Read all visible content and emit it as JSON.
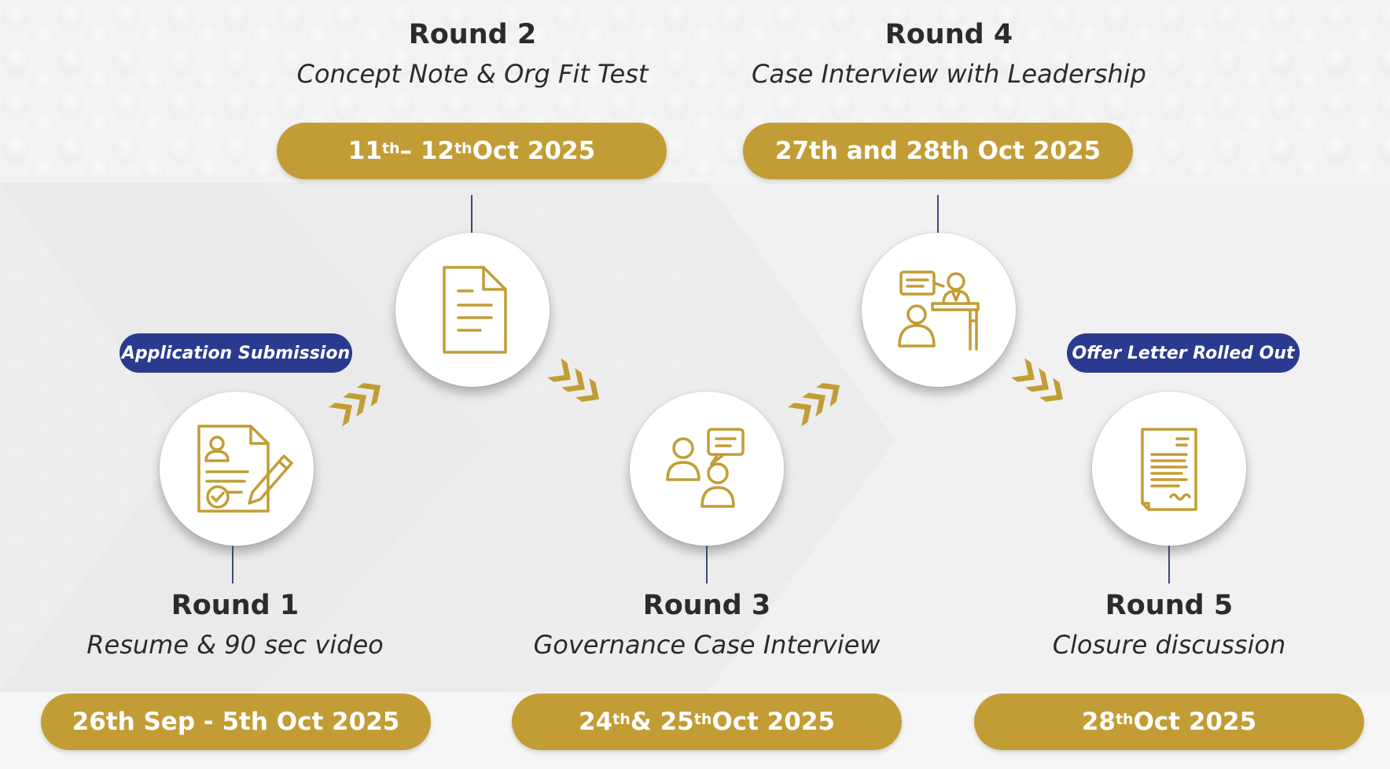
{
  "colors": {
    "gold": "#c29d35",
    "navy": "#2a3b8f",
    "text": "#2b2b2b"
  },
  "rounds": [
    {
      "title": "Round 1",
      "subtitle": "Resume & 90 sec video",
      "date": "26th Sep - 5th Oct 2025",
      "icon": "resume-pen-icon"
    },
    {
      "title": "Round 2",
      "subtitle": "Concept Note & Org Fit Test",
      "date": {
        "a": "11",
        "a_sup": "th",
        "b": "– 12",
        "b_sup": "th",
        "c": " Oct 2025"
      },
      "icon": "document-icon"
    },
    {
      "title": "Round 3",
      "subtitle": "Governance Case Interview",
      "date": {
        "a": "24",
        "a_sup": "th",
        "b": " & 25",
        "b_sup": "th",
        "c": " Oct 2025"
      },
      "icon": "discussion-icon"
    },
    {
      "title": "Round 4",
      "subtitle": "Case Interview with Leadership",
      "date": "27th and 28th Oct 2025",
      "icon": "interview-desk-icon"
    },
    {
      "title": "Round 5",
      "subtitle": "Closure discussion",
      "date": {
        "a": "28",
        "a_sup": "th",
        "c": " Oct 2025"
      },
      "icon": "signed-document-icon"
    }
  ],
  "tags": {
    "start": "Application Submission",
    "end": "Offer Letter Rolled Out"
  }
}
